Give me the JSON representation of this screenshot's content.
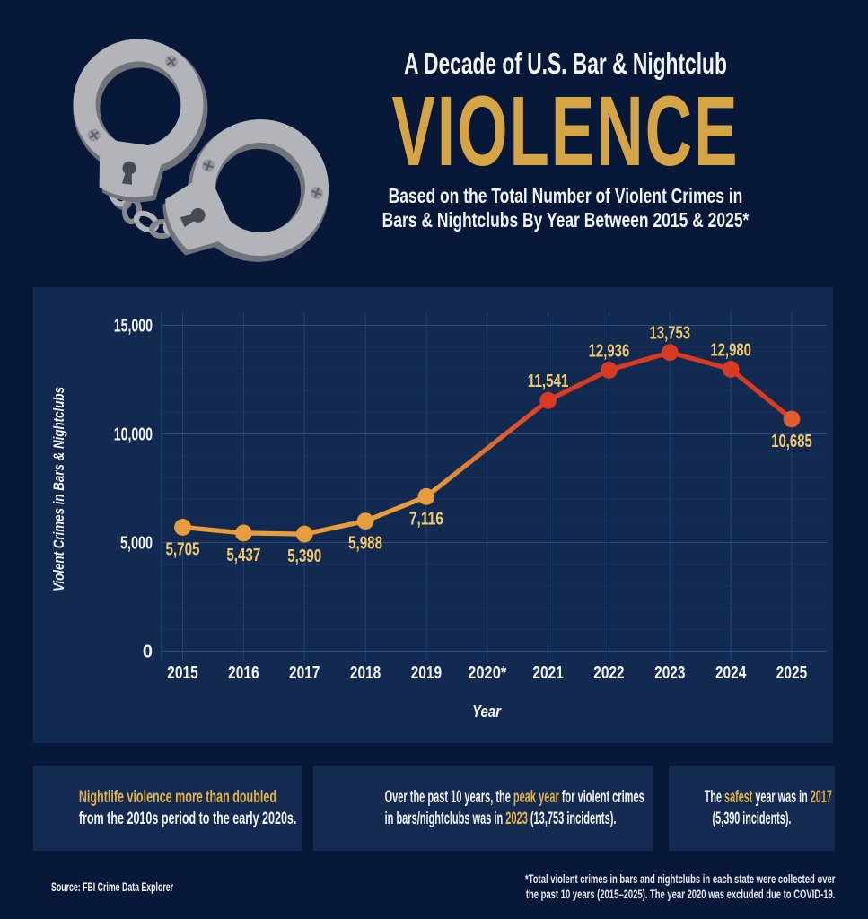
{
  "theme": {
    "page_bg": "#071838",
    "panel_bg": "#122950",
    "box_bg": "#142a50",
    "gold": "#d5a444",
    "gold_label": "#f0ca6e",
    "callout_gold": "#e2b44c",
    "white": "#f2f3f5",
    "grid_minor": "#1a3161",
    "grid_major": "#2c4a82",
    "grid_vert": "#24407a"
  },
  "header": {
    "kicker": "A Decade of U.S. Bar & Nightclub",
    "title": "VIOLENCE",
    "subtitle_line1": "Based on the Total Number of Violent Crimes in",
    "subtitle_line2": "Bars & Nightclubs By Year Between 2015 & 2025*",
    "illustration": "handcuffs-icon"
  },
  "chart_data": {
    "type": "line",
    "title": "",
    "xlabel": "Year",
    "ylabel": "Violent Crimes in Bars & Nightclubs",
    "categories": [
      "2015",
      "2016",
      "2017",
      "2018",
      "2019",
      "2020*",
      "2021",
      "2022",
      "2023",
      "2024",
      "2025"
    ],
    "series": [
      {
        "name": "Violent crimes in bars & nightclubs",
        "values": [
          5705,
          5437,
          5390,
          5988,
          7116,
          null,
          11541,
          12936,
          13753,
          12980,
          10685
        ]
      }
    ],
    "data_labels": [
      "5,705",
      "5,437",
      "5,390",
      "5,988",
      "7,116",
      "",
      "11,541",
      "12,936",
      "13,753",
      "12,980",
      "10,685"
    ],
    "label_position": [
      "below",
      "below",
      "below",
      "below",
      "below",
      "",
      "above",
      "above",
      "above",
      "above",
      "below"
    ],
    "point_colors": [
      "#e89d3c",
      "#e89d3c",
      "#e89d3c",
      "#e89d3c",
      "#e89d3c",
      "",
      "#d93b22",
      "#d93b22",
      "#d93b22",
      "#d93b22",
      "#e25c2b"
    ],
    "line_gradient": {
      "start": "#e89d3c",
      "end": "#d93b22"
    },
    "ylim": [
      0,
      15000
    ],
    "yticks": [
      {
        "value": 0,
        "label": "0"
      },
      {
        "value": 5000,
        "label": "5,000"
      },
      {
        "value": 10000,
        "label": "10,000"
      },
      {
        "value": 15000,
        "label": "15,000"
      }
    ],
    "y_minor_step": 1000,
    "grid": true,
    "legend": false
  },
  "callouts": {
    "box1": {
      "line1": "Nightlife violence more than doubled",
      "line2": "from the 2010s period to the early 2020s."
    },
    "box2": {
      "line1_a": "Over the past 10 years, the ",
      "line1_b": "peak year",
      "line1_c": " for violent crimes",
      "line2_a": "in bars/nightclubs was in ",
      "line2_b": "2023",
      "line2_c": " (13,753 incidents)."
    },
    "box3": {
      "line1_a": "The ",
      "line1_b": "safest",
      "line1_c": " year was in ",
      "line1_d": "2017",
      "line2": "(5,390 incidents)."
    }
  },
  "footer": {
    "source": "Source: FBI Crime Data Explorer",
    "footnote_line1": "*Total violent crimes in bars and nightclubs in each state were collected over",
    "footnote_line2": "the past 10 years (2015–2025). The year 2020 was excluded due to COVID-19."
  }
}
